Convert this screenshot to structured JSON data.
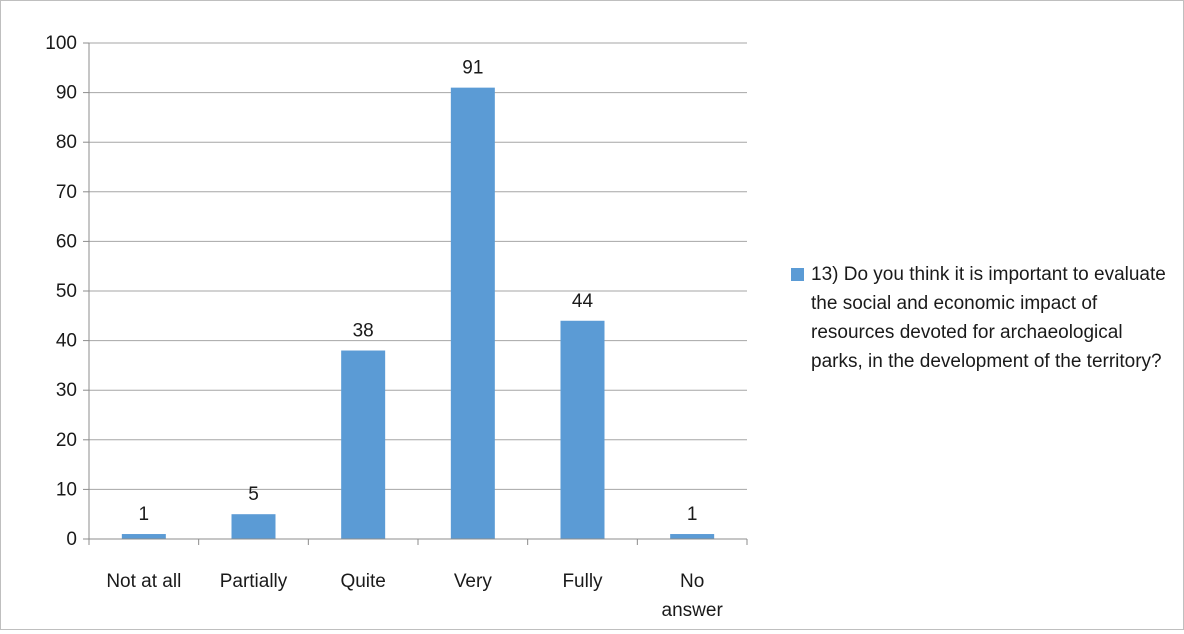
{
  "chart_data": {
    "type": "bar",
    "categories": [
      "Not at all",
      "Partially",
      "Quite",
      "Very",
      "Fully",
      "No answer"
    ],
    "category_lines": [
      [
        "Not at all"
      ],
      [
        "Partially"
      ],
      [
        "Quite"
      ],
      [
        "Very"
      ],
      [
        "Fully"
      ],
      [
        "No",
        "answer"
      ]
    ],
    "series": [
      {
        "name": "13) Do you think it is important to evaluate the social and economic impact of resources devoted for archaeological parks, in the development of the territory?",
        "values": [
          1,
          5,
          38,
          91,
          44,
          1
        ]
      }
    ],
    "data_labels": [
      "1",
      "5",
      "38",
      "91",
      "44",
      "1"
    ],
    "ylim": [
      0,
      100
    ],
    "yticks": [
      "0",
      "10",
      "20",
      "30",
      "40",
      "50",
      "60",
      "70",
      "80",
      "90",
      "100"
    ],
    "grid": true,
    "legend_position": "right",
    "bar_color": "#5b9bd5"
  }
}
